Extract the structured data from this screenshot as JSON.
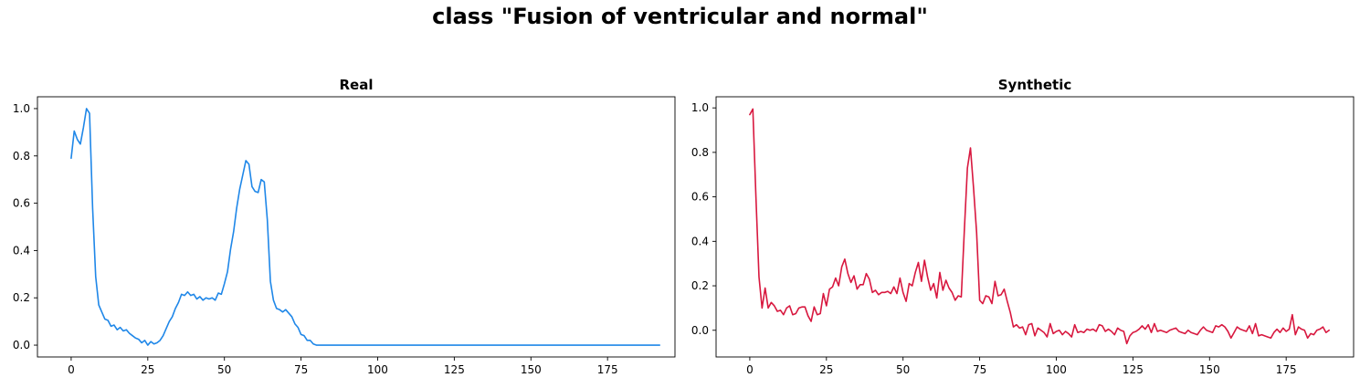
{
  "figure": {
    "title": "class \"Fusion of ventricular and normal\""
  },
  "chart_data": [
    {
      "type": "line",
      "title": "Real",
      "xlabel": "",
      "ylabel": "",
      "xlim": [
        -11,
        197
      ],
      "ylim": [
        -0.05,
        1.05
      ],
      "xticks": [
        0,
        25,
        50,
        75,
        100,
        125,
        150,
        175
      ],
      "yticks": [
        0.0,
        0.2,
        0.4,
        0.6,
        0.8,
        1.0
      ],
      "grid": false,
      "series": [
        {
          "color": "#1f87e8",
          "x_start": 0,
          "values": [
            0.79,
            0.905,
            0.87,
            0.85,
            0.92,
            1.0,
            0.98,
            0.58,
            0.29,
            0.17,
            0.14,
            0.11,
            0.105,
            0.08,
            0.085,
            0.065,
            0.075,
            0.06,
            0.065,
            0.05,
            0.04,
            0.03,
            0.025,
            0.01,
            0.02,
            0.0,
            0.015,
            0.005,
            0.01,
            0.02,
            0.04,
            0.07,
            0.1,
            0.12,
            0.155,
            0.18,
            0.215,
            0.21,
            0.225,
            0.21,
            0.215,
            0.195,
            0.205,
            0.19,
            0.2,
            0.195,
            0.2,
            0.19,
            0.22,
            0.215,
            0.26,
            0.31,
            0.405,
            0.48,
            0.58,
            0.66,
            0.72,
            0.78,
            0.765,
            0.67,
            0.65,
            0.645,
            0.7,
            0.69,
            0.53,
            0.27,
            0.19,
            0.155,
            0.15,
            0.14,
            0.15,
            0.135,
            0.12,
            0.09,
            0.075,
            0.045,
            0.04,
            0.02,
            0.02,
            0.005,
            0.0,
            0.0,
            0.0,
            0.0,
            0.0,
            0.0,
            0.0,
            0.0,
            0.0,
            0.0,
            0.0,
            0.0,
            0.0,
            0.0,
            0.0,
            0.0,
            0.0,
            0.0,
            0.0,
            0.0,
            0.0,
            0.0,
            0.0,
            0.0,
            0.0,
            0.0,
            0.0,
            0.0,
            0.0,
            0.0,
            0.0,
            0.0,
            0.0,
            0.0,
            0.0,
            0.0,
            0.0,
            0.0,
            0.0,
            0.0,
            0.0,
            0.0,
            0.0,
            0.0,
            0.0,
            0.0,
            0.0,
            0.0,
            0.0,
            0.0,
            0.0,
            0.0,
            0.0,
            0.0,
            0.0,
            0.0,
            0.0,
            0.0,
            0.0,
            0.0,
            0.0,
            0.0,
            0.0,
            0.0,
            0.0,
            0.0,
            0.0,
            0.0,
            0.0,
            0.0,
            0.0,
            0.0,
            0.0,
            0.0,
            0.0,
            0.0,
            0.0,
            0.0,
            0.0,
            0.0,
            0.0,
            0.0,
            0.0,
            0.0,
            0.0,
            0.0,
            0.0,
            0.0,
            0.0,
            0.0,
            0.0,
            0.0,
            0.0,
            0.0,
            0.0,
            0.0,
            0.0,
            0.0,
            0.0,
            0.0,
            0.0,
            0.0,
            0.0,
            0.0,
            0.0,
            0.0,
            0.0,
            0.0,
            0.0,
            0.0,
            0.0,
            0.0,
            0.0
          ]
        }
      ]
    },
    {
      "type": "line",
      "title": "Synthetic",
      "xlabel": "",
      "ylabel": "",
      "xlim": [
        -11,
        197
      ],
      "ylim": [
        -0.12,
        1.05
      ],
      "xticks": [
        0,
        25,
        50,
        75,
        100,
        125,
        150,
        175
      ],
      "yticks": [
        0.0,
        0.2,
        0.4,
        0.6,
        0.8,
        1.0
      ],
      "grid": false,
      "series": [
        {
          "color": "#d8183f",
          "x_start": 0,
          "values": [
            0.97,
            0.995,
            0.6,
            0.24,
            0.1,
            0.19,
            0.1,
            0.125,
            0.11,
            0.085,
            0.09,
            0.07,
            0.1,
            0.11,
            0.07,
            0.075,
            0.1,
            0.105,
            0.105,
            0.065,
            0.04,
            0.105,
            0.07,
            0.075,
            0.165,
            0.11,
            0.185,
            0.195,
            0.235,
            0.2,
            0.285,
            0.32,
            0.255,
            0.215,
            0.245,
            0.185,
            0.205,
            0.205,
            0.255,
            0.23,
            0.17,
            0.18,
            0.16,
            0.17,
            0.17,
            0.175,
            0.165,
            0.195,
            0.165,
            0.235,
            0.17,
            0.13,
            0.21,
            0.2,
            0.26,
            0.305,
            0.22,
            0.315,
            0.24,
            0.18,
            0.21,
            0.145,
            0.26,
            0.18,
            0.225,
            0.19,
            0.17,
            0.135,
            0.155,
            0.15,
            0.45,
            0.73,
            0.82,
            0.64,
            0.44,
            0.135,
            0.12,
            0.155,
            0.15,
            0.12,
            0.22,
            0.155,
            0.16,
            0.185,
            0.13,
            0.08,
            0.015,
            0.025,
            0.01,
            0.015,
            -0.02,
            0.025,
            0.03,
            -0.025,
            0.01,
            0.0,
            -0.01,
            -0.03,
            0.03,
            -0.015,
            -0.005,
            0.0,
            -0.02,
            -0.005,
            -0.015,
            -0.03,
            0.025,
            -0.01,
            -0.005,
            -0.01,
            0.005,
            0.0,
            0.005,
            -0.005,
            0.025,
            0.02,
            -0.005,
            0.005,
            -0.005,
            -0.02,
            0.01,
            0.0,
            -0.005,
            -0.06,
            -0.025,
            -0.01,
            -0.005,
            0.005,
            0.02,
            0.005,
            0.025,
            -0.01,
            0.03,
            -0.005,
            0.0,
            -0.005,
            -0.01,
            0.0,
            0.005,
            0.01,
            -0.005,
            -0.01,
            -0.015,
            0.0,
            -0.01,
            -0.015,
            -0.02,
            0.0,
            0.015,
            0.0,
            -0.005,
            -0.01,
            0.02,
            0.015,
            0.025,
            0.015,
            -0.005,
            -0.035,
            -0.01,
            0.015,
            0.005,
            0.0,
            -0.005,
            0.02,
            -0.015,
            0.03,
            -0.025,
            -0.02,
            -0.025,
            -0.03,
            -0.035,
            -0.01,
            0.005,
            -0.01,
            0.01,
            -0.005,
            0.005,
            0.07,
            -0.02,
            0.015,
            0.005,
            0.0,
            -0.035,
            -0.015,
            -0.02,
            0.0,
            0.005,
            0.015,
            -0.01,
            0.0
          ]
        }
      ]
    }
  ]
}
